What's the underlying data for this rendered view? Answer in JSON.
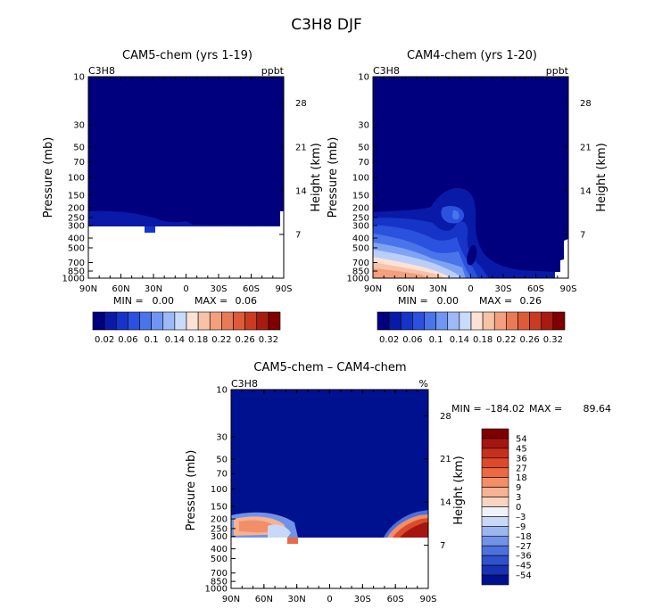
{
  "figure_title": "C3H8 DJF",
  "chart_data": [
    {
      "type": "heatmap",
      "title": "CAM5-chem (yrs 1-19)",
      "label_left": "C3H8",
      "label_right": "ppbt",
      "xlabel": "",
      "ylabel": "Pressure (mb)",
      "ylabel_right": "Height (km)",
      "x_ticks": [
        "90N",
        "60N",
        "30N",
        "0",
        "30S",
        "60S",
        "90S"
      ],
      "pressure_ticks": [
        "10",
        "30",
        "50",
        "70",
        "100",
        "150",
        "200",
        "250",
        "300",
        "400",
        "500",
        "700",
        "850",
        "1000"
      ],
      "height_ticks": [
        "28",
        "21",
        "14",
        "7"
      ],
      "stats": {
        "min_label": "MIN =",
        "min": "0.00",
        "max_label": "MAX =",
        "max": "0.06"
      },
      "colorbar": {
        "orientation": "horizontal",
        "labels": [
          "0.02",
          "0.06",
          "0.1",
          "0.14",
          "0.18",
          "0.22",
          "0.26",
          "0.32"
        ],
        "colors": [
          "#00007f",
          "#0a1aa8",
          "#1634c8",
          "#2a52de",
          "#4a74ea",
          "#6f96f2",
          "#9dbaf6",
          "#c8dbfb",
          "#fbe2d5",
          "#f7c2a6",
          "#f2a07d",
          "#ea7a56",
          "#df5a38",
          "#c93c22",
          "#a81c10",
          "#7f0000"
        ]
      }
    },
    {
      "type": "heatmap",
      "title": "CAM4-chem (yrs 1-20)",
      "label_left": "C3H8",
      "label_right": "ppbt",
      "xlabel": "",
      "ylabel": "Pressure (mb)",
      "ylabel_right": "Height (km)",
      "x_ticks": [
        "90N",
        "60N",
        "30N",
        "0",
        "30S",
        "60S",
        "90S"
      ],
      "pressure_ticks": [
        "10",
        "30",
        "50",
        "70",
        "100",
        "150",
        "200",
        "250",
        "300",
        "400",
        "500",
        "700",
        "850",
        "1000"
      ],
      "height_ticks": [
        "28",
        "21",
        "14",
        "7"
      ],
      "stats": {
        "min_label": "MIN =",
        "min": "0.00",
        "max_label": "MAX =",
        "max": "0.26"
      },
      "colorbar": {
        "orientation": "horizontal",
        "labels": [
          "0.02",
          "0.06",
          "0.1",
          "0.14",
          "0.18",
          "0.22",
          "0.26",
          "0.32"
        ],
        "colors": [
          "#00007f",
          "#0a1aa8",
          "#1634c8",
          "#2a52de",
          "#4a74ea",
          "#6f96f2",
          "#9dbaf6",
          "#c8dbfb",
          "#fbe2d5",
          "#f7c2a6",
          "#f2a07d",
          "#ea7a56",
          "#df5a38",
          "#c93c22",
          "#a81c10",
          "#7f0000"
        ]
      }
    },
    {
      "type": "heatmap",
      "title": "CAM5-chem – CAM4-chem",
      "label_left": "C3H8",
      "label_right": "%",
      "xlabel": "",
      "ylabel": "Pressure (mb)",
      "ylabel_right": "Height (km)",
      "x_ticks": [
        "90N",
        "60N",
        "30N",
        "0",
        "30S",
        "60S",
        "90S"
      ],
      "pressure_ticks": [
        "10",
        "30",
        "50",
        "70",
        "100",
        "150",
        "200",
        "250",
        "300",
        "400",
        "500",
        "700",
        "850",
        "1000"
      ],
      "height_ticks": [
        "28",
        "21",
        "14",
        "7"
      ],
      "stats": {
        "min_label": "MIN = ",
        "min": "–184.02",
        "max_label": "MAX = ",
        "max": "89.64"
      },
      "colorbar": {
        "orientation": "vertical",
        "labels": [
          "54",
          "45",
          "36",
          "27",
          "18",
          "9",
          "3",
          "0",
          "–3",
          "–9",
          "–18",
          "–27",
          "–36",
          "–45",
          "–54"
        ],
        "colors": [
          "#7f0000",
          "#a51610",
          "#c6301c",
          "#dc4a2c",
          "#ea6a44",
          "#f28e68",
          "#f6b292",
          "#fad4c0",
          "#eef2fc",
          "#c8d8f6",
          "#9cb6f0",
          "#7093e8",
          "#4d70dc",
          "#3050cc",
          "#1832b4",
          "#001190"
        ]
      }
    }
  ]
}
